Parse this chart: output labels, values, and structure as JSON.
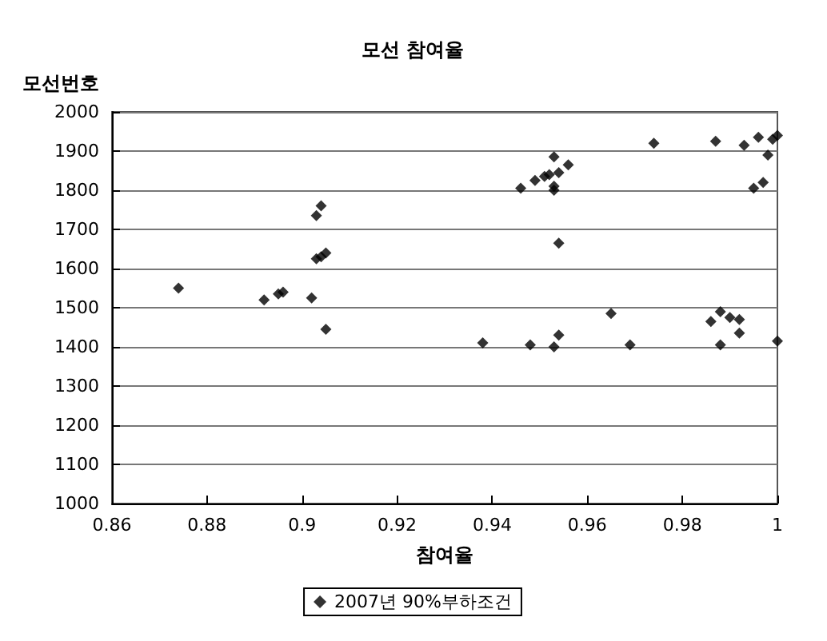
{
  "chart_data": {
    "type": "scatter",
    "title": "모선 참여율",
    "xlabel": "참여율",
    "ylabel": "모선번호",
    "xlim": [
      0.86,
      1
    ],
    "xticks": [
      0.86,
      0.88,
      0.9,
      0.92,
      0.94,
      0.96,
      0.98,
      1
    ],
    "ylim": [
      1000,
      2000
    ],
    "yticks": [
      1000,
      1100,
      1200,
      1300,
      1400,
      1500,
      1600,
      1700,
      1800,
      1900,
      2000
    ],
    "grid": "y",
    "legend": "bottom",
    "marker": "diamond",
    "series": [
      {
        "name": "2007년 90%부하조건",
        "color": "#000000",
        "x": [
          0.874,
          0.892,
          0.895,
          0.896,
          0.902,
          0.903,
          0.904,
          0.905,
          0.903,
          0.904,
          0.905,
          0.938,
          0.948,
          0.953,
          0.954,
          0.965,
          0.969,
          0.946,
          0.949,
          0.951,
          0.952,
          0.953,
          0.953,
          0.953,
          0.954,
          0.956,
          0.954,
          0.974,
          0.987,
          0.993,
          0.996,
          0.999,
          1.0,
          0.998,
          0.997,
          0.995,
          0.986,
          0.988,
          0.99,
          0.992,
          0.992,
          0.988,
          1.0
        ],
        "values": [
          1550,
          1520,
          1535,
          1540,
          1525,
          1625,
          1630,
          1640,
          1735,
          1760,
          1445,
          1410,
          1405,
          1400,
          1430,
          1485,
          1405,
          1805,
          1825,
          1835,
          1840,
          1810,
          1800,
          1885,
          1845,
          1865,
          1665,
          1920,
          1925,
          1915,
          1935,
          1930,
          1940,
          1890,
          1820,
          1805,
          1465,
          1490,
          1475,
          1470,
          1435,
          1405,
          1415
        ]
      }
    ]
  }
}
